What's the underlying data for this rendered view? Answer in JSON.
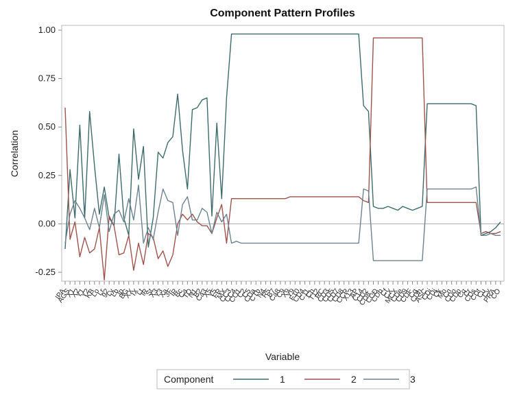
{
  "chart_data": {
    "type": "line",
    "title": "Component Pattern Profiles",
    "xlabel": "Variable",
    "ylabel": "Correlation",
    "ylim": [
      -0.3,
      1.05
    ],
    "yticks": [
      "1.00",
      "0.75",
      "0.50",
      "0.25",
      "0.00",
      "-0.25"
    ],
    "ytick_values": [
      1.0,
      0.75,
      0.5,
      0.25,
      0.0,
      -0.25
    ],
    "reference_line": 0,
    "grid": false,
    "legend": {
      "title": "Component",
      "placement": "bottom"
    },
    "x": [
      1,
      2,
      3,
      4,
      5,
      6,
      7,
      8,
      9,
      10,
      11,
      12,
      13,
      14,
      15,
      16,
      17,
      18,
      19,
      20,
      21,
      22,
      23,
      24,
      25,
      26,
      27,
      28,
      29,
      30,
      31,
      32,
      33,
      34,
      35,
      36,
      37,
      38,
      39,
      40,
      41,
      42,
      43,
      44,
      45,
      46,
      47,
      48,
      49,
      50,
      51,
      52,
      53,
      54,
      55,
      56,
      57,
      58,
      59,
      60,
      61,
      62,
      63,
      64,
      65,
      66,
      67,
      68,
      69,
      70,
      71,
      72,
      73,
      74,
      75,
      76,
      77,
      78,
      79,
      80,
      81,
      82,
      83,
      84,
      85,
      86,
      87,
      88,
      89,
      90
    ],
    "series": [
      {
        "name": "1",
        "color": "#3d6b6b",
        "values": [
          -0.13,
          0.28,
          0.03,
          0.51,
          0.03,
          0.58,
          0.3,
          0.05,
          0.19,
          0.03,
          -0.01,
          0.36,
          0.03,
          -0.06,
          0.49,
          0.23,
          0.4,
          -0.12,
          0.03,
          0.37,
          0.34,
          0.42,
          0.45,
          0.67,
          0.38,
          0.18,
          0.59,
          0.6,
          0.64,
          0.65,
          0.04,
          0.52,
          0.13,
          0.65,
          0.98,
          0.98,
          0.98,
          0.98,
          0.98,
          0.98,
          0.98,
          0.98,
          0.98,
          0.98,
          0.98,
          0.98,
          0.98,
          0.98,
          0.98,
          0.98,
          0.98,
          0.98,
          0.98,
          0.98,
          0.98,
          0.98,
          0.98,
          0.98,
          0.98,
          0.98,
          0.98,
          0.61,
          0.58,
          0.09,
          0.08,
          0.08,
          0.09,
          0.08,
          0.07,
          0.09,
          0.08,
          0.07,
          0.08,
          0.09,
          0.62,
          0.62,
          0.62,
          0.62,
          0.62,
          0.62,
          0.62,
          0.62,
          0.62,
          0.62,
          0.61,
          -0.06,
          -0.05,
          -0.04,
          -0.02,
          0.01
        ]
      },
      {
        "name": "2",
        "color": "#a0524d",
        "values": [
          0.6,
          -0.08,
          0.01,
          -0.17,
          -0.07,
          -0.15,
          -0.13,
          -0.02,
          -0.29,
          0.04,
          -0.01,
          -0.16,
          -0.15,
          -0.06,
          -0.24,
          -0.1,
          -0.21,
          -0.05,
          -0.07,
          -0.18,
          -0.14,
          -0.22,
          -0.16,
          0.0,
          0.05,
          0.02,
          0.05,
          0.01,
          -0.01,
          -0.01,
          -0.05,
          0.03,
          0.1,
          -0.1,
          0.13,
          0.13,
          0.13,
          0.13,
          0.13,
          0.13,
          0.13,
          0.13,
          0.13,
          0.13,
          0.13,
          0.13,
          0.14,
          0.14,
          0.14,
          0.14,
          0.14,
          0.14,
          0.14,
          0.14,
          0.14,
          0.14,
          0.14,
          0.14,
          0.14,
          0.14,
          0.14,
          0.12,
          0.11,
          0.96,
          0.96,
          0.96,
          0.96,
          0.96,
          0.96,
          0.96,
          0.96,
          0.96,
          0.96,
          0.96,
          0.11,
          0.11,
          0.11,
          0.11,
          0.11,
          0.11,
          0.11,
          0.11,
          0.11,
          0.11,
          0.11,
          -0.05,
          -0.04,
          -0.05,
          -0.05,
          -0.04
        ]
      },
      {
        "name": "3",
        "color": "#6b8290",
        "values": [
          -0.1,
          0.05,
          0.12,
          0.08,
          0.03,
          -0.03,
          0.08,
          -0.02,
          0.15,
          -0.04,
          0.05,
          0.07,
          0.01,
          0.13,
          0.02,
          0.2,
          -0.1,
          -0.02,
          -0.08,
          0.06,
          0.18,
          0.12,
          0.11,
          -0.06,
          0.1,
          0.14,
          0.02,
          0.02,
          0.08,
          0.06,
          -0.05,
          0.06,
          0.01,
          0.05,
          -0.1,
          -0.09,
          -0.1,
          -0.1,
          -0.1,
          -0.1,
          -0.1,
          -0.1,
          -0.1,
          -0.1,
          -0.1,
          -0.1,
          -0.1,
          -0.1,
          -0.1,
          -0.1,
          -0.1,
          -0.1,
          -0.1,
          -0.1,
          -0.1,
          -0.1,
          -0.1,
          -0.1,
          -0.1,
          -0.1,
          -0.1,
          0.18,
          0.17,
          -0.19,
          -0.19,
          -0.19,
          -0.19,
          -0.19,
          -0.19,
          -0.19,
          -0.19,
          -0.19,
          -0.19,
          -0.19,
          0.18,
          0.18,
          0.18,
          0.18,
          0.18,
          0.18,
          0.18,
          0.18,
          0.18,
          0.18,
          0.19,
          -0.06,
          -0.06,
          -0.05,
          -0.06,
          -0.06
        ]
      }
    ],
    "category_labels": [
      "IPA",
      "AGS",
      "X1",
      "X2",
      "Y1",
      "Y2",
      "KB",
      "Lo",
      "Lr",
      "g2",
      "Ly",
      "Lb",
      "Ip",
      "BG",
      "XX",
      "IX",
      "Lt",
      "lR",
      "St",
      "X3",
      "Y3",
      "Xa",
      "3F",
      "IR",
      "Bc",
      "Ca",
      "TQ",
      "N1",
      "B2",
      "Ca3",
      "X5",
      "Y5",
      "FR",
      "MX",
      "CC3",
      "CC4",
      "CO1",
      "C2",
      "C5",
      "CDa",
      "CTb",
      "N4",
      "R5",
      "B7",
      "Ca8",
      "C9",
      "X9",
      "Y9",
      "F10",
      "CD4",
      "C11",
      "Cb",
      "T12",
      "RC",
      "CD3",
      "CD5",
      "CD7",
      "CD8",
      "CCR",
      "X13",
      "AP",
      "C14",
      "CD2",
      "CD8_",
      "CCD",
      "CDb",
      "Cf",
      "CX",
      "MCX",
      "CDe",
      "CD9",
      "CDF",
      "Cg",
      "CDh",
      "ASC",
      "CDi",
      "CDj",
      "Ck",
      "Mo",
      "Cn",
      "CDo",
      "CDp",
      "Cq",
      "Cr",
      "CDs",
      "CDt",
      "Cu",
      "Cv",
      "PRA",
      "CO"
    ]
  }
}
